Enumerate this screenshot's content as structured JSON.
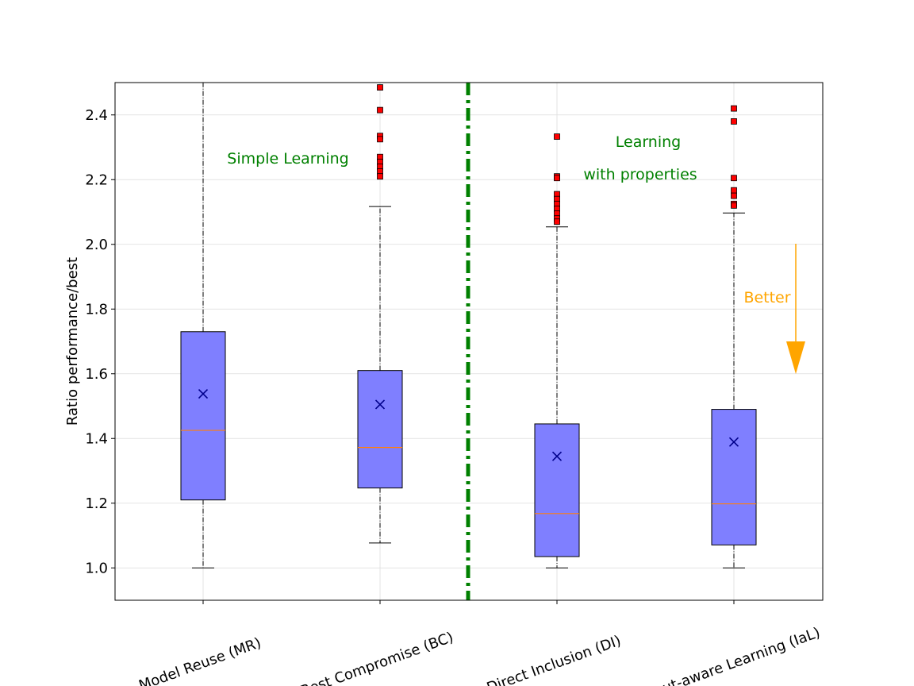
{
  "chart_data": {
    "type": "box",
    "ylabel": "Ratio performance/best",
    "ylim": [
      0.9,
      2.5
    ],
    "yticks": [
      "1.0",
      "1.2",
      "1.4",
      "1.6",
      "1.8",
      "2.0",
      "2.2",
      "2.4"
    ],
    "grid": true,
    "categories": [
      "Model Reuse (MR)",
      "Best Compromise (BC)",
      "Direct Inclusion (DI)",
      "Input-aware Learning (IaL)"
    ],
    "series": [
      {
        "category": "Model Reuse (MR)",
        "whisker_low": 1.0,
        "q1": 1.21,
        "median": 1.425,
        "q3": 1.73,
        "whisker_high": 2.5,
        "mean": 1.538,
        "outliers": []
      },
      {
        "category": "Best Compromise (BC)",
        "whisker_low": 1.077,
        "q1": 1.247,
        "median": 1.372,
        "q3": 1.61,
        "whisker_high": 2.117,
        "mean": 1.505,
        "outliers": [
          2.485,
          2.415,
          2.335,
          2.325,
          2.27,
          2.255,
          2.24,
          2.225,
          2.21
        ]
      },
      {
        "category": "Direct Inclusion (DI)",
        "whisker_low": 1.0,
        "q1": 1.035,
        "median": 1.168,
        "q3": 1.445,
        "whisker_high": 2.054,
        "mean": 1.345,
        "outliers": [
          2.333,
          2.21,
          2.205,
          2.155,
          2.14,
          2.125,
          2.11,
          2.095,
          2.08,
          2.07
        ]
      },
      {
        "category": "Input-aware Learning (IaL)",
        "whisker_low": 1.0,
        "q1": 1.071,
        "median": 1.198,
        "q3": 1.49,
        "whisker_high": 2.097,
        "mean": 1.389,
        "outliers": [
          2.42,
          2.38,
          2.205,
          2.167,
          2.15,
          2.125,
          2.12
        ]
      }
    ],
    "annotations": {
      "simple": "Simple Learning",
      "learning_line1": "Learning",
      "learning_line2": "with properties",
      "better": "Better"
    },
    "colors": {
      "box_fill": "#7f7fff",
      "median": "#ff7f0e",
      "mean_marker": "#00008b",
      "outlier": "#ff0000",
      "separator": "#008000",
      "annotation_green": "#008000",
      "better": "#ffa500"
    }
  }
}
